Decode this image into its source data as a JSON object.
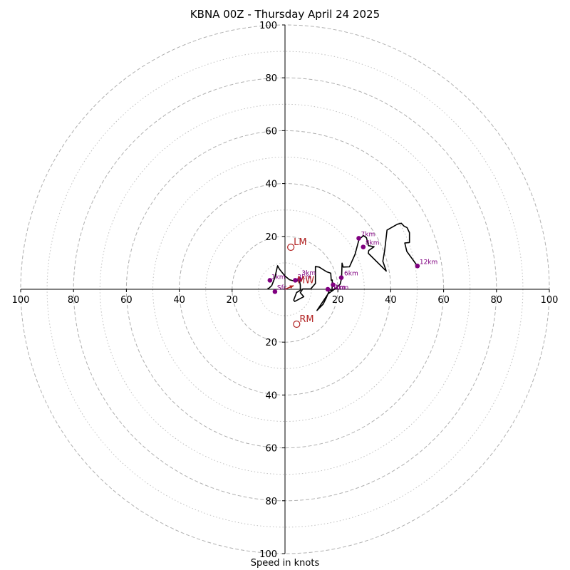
{
  "chart_data": {
    "type": "hodograph",
    "title": "KBNA 00Z - Thursday April 24 2025",
    "xlabel": "Speed in knots",
    "ylabel": "",
    "max_speed": 100,
    "ring_major": [
      20,
      40,
      60,
      80,
      100
    ],
    "ring_minor": [
      10,
      30,
      50,
      70,
      90
    ],
    "x_tick_labels": [
      "100",
      "80",
      "60",
      "40",
      "20",
      "20",
      "40",
      "60",
      "80",
      "100"
    ],
    "y_tick_labels": [
      "100",
      "80",
      "60",
      "40",
      "20",
      "20",
      "40",
      "60",
      "80",
      "100"
    ],
    "grid": true,
    "colors": {
      "trace": "#000000",
      "points": "#800080",
      "storm_motion": "#b22222",
      "ring": "#b0b0b0"
    },
    "trace": [
      [
        -6.6,
        0.4
      ],
      [
        -6.2,
        0.3
      ],
      [
        -5.0,
        1.4
      ],
      [
        -3.9,
        4.2
      ],
      [
        -2.8,
        8.9
      ],
      [
        -2.1,
        7.6
      ],
      [
        0.0,
        5.0
      ],
      [
        1.7,
        3.6
      ],
      [
        4.0,
        3.0
      ],
      [
        5.5,
        3.3
      ],
      [
        5.8,
        1.6
      ],
      [
        5.8,
        -0.4
      ],
      [
        4.4,
        -1.2
      ],
      [
        3.3,
        -4.1
      ],
      [
        3.7,
        -4.6
      ],
      [
        7.1,
        -2.8
      ],
      [
        5.8,
        -1.3
      ],
      [
        6.7,
        0.1
      ],
      [
        9.7,
        0.1
      ],
      [
        11.5,
        2.2
      ],
      [
        11.5,
        8.6
      ],
      [
        12.9,
        8.4
      ],
      [
        15.8,
        6.6
      ],
      [
        17.3,
        6.1
      ],
      [
        17.5,
        3.4
      ],
      [
        17.9,
        3.5
      ],
      [
        17.8,
        -0.7
      ],
      [
        16.9,
        -0.1
      ],
      [
        15.6,
        -3.3
      ],
      [
        14.4,
        -5.7
      ],
      [
        12.1,
        -8.0
      ],
      [
        16.3,
        -1.7
      ],
      [
        19.7,
        0.7
      ],
      [
        20.9,
        2.0
      ],
      [
        21.4,
        4.2
      ],
      [
        21.6,
        9.9
      ],
      [
        22.0,
        8.4
      ],
      [
        24.4,
        8.5
      ],
      [
        26.5,
        13.2
      ],
      [
        28.0,
        18.9
      ],
      [
        29.7,
        20.3
      ],
      [
        30.8,
        19.5
      ],
      [
        31.6,
        16.5
      ],
      [
        33.7,
        16.1
      ],
      [
        31.7,
        14.7
      ],
      [
        31.5,
        13.6
      ],
      [
        38.3,
        6.9
      ],
      [
        37.0,
        10.6
      ],
      [
        37.7,
        14.7
      ],
      [
        38.6,
        22.4
      ],
      [
        42.5,
        24.6
      ],
      [
        44.0,
        25.0
      ],
      [
        45.0,
        23.9
      ],
      [
        46.2,
        23.3
      ],
      [
        47.1,
        21.4
      ],
      [
        47.1,
        17.7
      ],
      [
        45.3,
        17.5
      ],
      [
        46.1,
        14.3
      ],
      [
        50.1,
        8.8
      ]
    ],
    "points": [
      {
        "label": "1km",
        "x": -5.7,
        "y": 3.4
      },
      {
        "label": "2km",
        "x": 3.9,
        "y": 3.4
      },
      {
        "label": "3km",
        "x": 5.5,
        "y": 3.8
      },
      {
        "label": "4km",
        "x": 18.2,
        "y": 1.7
      },
      {
        "label": "5km",
        "x": 16.2,
        "y": 0.0
      },
      {
        "label": "6km",
        "x": 21.3,
        "y": 4.4
      },
      {
        "label": "7km",
        "x": 27.9,
        "y": 19.3
      },
      {
        "label": "8km",
        "x": 29.6,
        "y": 16.0
      },
      {
        "label": "12km",
        "x": 50.1,
        "y": 8.8
      },
      {
        "label": "Sfc",
        "x": -3.8,
        "y": -0.9
      }
    ],
    "storm_motion": [
      {
        "label": "LM",
        "x": 2.2,
        "y": 15.9
      },
      {
        "label": "RM",
        "x": 4.4,
        "y": -13.2
      },
      {
        "label": "MW",
        "x": 3.5,
        "y": 1.5
      }
    ],
    "sfc_arrow": {
      "label": "MW",
      "from": [
        0.0,
        0.0
      ],
      "to": [
        3.3,
        1.4
      ]
    }
  }
}
